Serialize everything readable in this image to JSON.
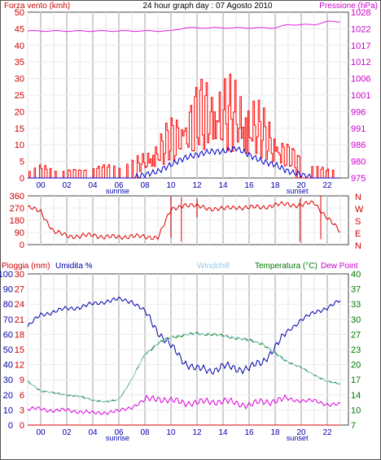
{
  "chart_data": [
    {
      "type": "line",
      "title": "24 hour graph day : 07 Agosto 2010",
      "ylabel": "Forza vento (kmh)",
      "y2label": "Pressione (hPa)",
      "ylim": [
        0,
        50
      ],
      "y_ticks": [
        "0",
        "5",
        "10",
        "15",
        "20",
        "25",
        "30",
        "35",
        "40",
        "45",
        "50"
      ],
      "y2lim": [
        975,
        1028
      ],
      "y2_ticks": [
        "975",
        "980",
        "986",
        "991",
        "996",
        "1001",
        "1006",
        "1012",
        "1017",
        "1022",
        "1028"
      ],
      "x_ticks": [
        "00",
        "02",
        "04",
        "06",
        "08",
        "10",
        "12",
        "14",
        "16",
        "18",
        "20",
        "22"
      ],
      "annotations": [
        "sunrise",
        "sunset"
      ],
      "x": [
        0,
        1,
        2,
        3,
        4,
        5,
        6,
        7,
        8,
        9,
        10,
        11,
        12,
        13,
        14,
        15,
        16,
        17,
        18,
        19,
        20,
        21,
        22,
        23,
        24
      ],
      "series": [
        {
          "name": "Pressione",
          "axis": "y2",
          "color": "#e020e0",
          "values": [
            1022,
            1022,
            1022,
            1022,
            1022,
            1022,
            1022,
            1022,
            1022,
            1022,
            1022,
            1022,
            1023,
            1023,
            1023,
            1023,
            1023,
            1023,
            1023,
            1023,
            1024,
            1024,
            1024,
            1025,
            1025
          ]
        },
        {
          "name": "Raffica",
          "axis": "y",
          "color": "#ff0000",
          "values": [
            2,
            3,
            2,
            2,
            2,
            3,
            3,
            3,
            4,
            6,
            10,
            14,
            18,
            22,
            25,
            23,
            22,
            20,
            16,
            12,
            8,
            5,
            3,
            2,
            2
          ]
        },
        {
          "name": "Vento medio",
          "axis": "y",
          "color": "#0000cc",
          "values": [
            0,
            0,
            0,
            0,
            0,
            0,
            0,
            0,
            0,
            1,
            2,
            4,
            6,
            7,
            8,
            8,
            9,
            7,
            5,
            4,
            2,
            1,
            0,
            0,
            0
          ]
        }
      ]
    },
    {
      "type": "scatter",
      "title": "",
      "ylim": [
        0,
        360
      ],
      "y_ticks": [
        "0",
        "90",
        "180",
        "270",
        "360"
      ],
      "y2_labels": [
        "N",
        "W",
        "S",
        "E",
        "N"
      ],
      "x": [
        0,
        1,
        2,
        3,
        4,
        5,
        6,
        7,
        8,
        9,
        10,
        11,
        12,
        13,
        14,
        15,
        16,
        17,
        18,
        19,
        20,
        21,
        22,
        23,
        24
      ],
      "series": [
        {
          "name": "Direzione",
          "color": "#dd0000",
          "values": [
            270,
            250,
            90,
            70,
            60,
            70,
            60,
            50,
            70,
            50,
            60,
            250,
            300,
            280,
            270,
            260,
            280,
            270,
            280,
            290,
            300,
            290,
            310,
            200,
            90
          ]
        }
      ]
    },
    {
      "type": "line",
      "title": "",
      "labels": {
        "pioggia": "Pioggia (mm)",
        "umidita": "Umidita %",
        "windchill": "Windchill",
        "temperatura": "Temperatura (°C)",
        "dewpoint": "Dew Point"
      },
      "y_rain_ticks": [
        "0",
        "3",
        "6",
        "9",
        "12",
        "15",
        "18",
        "21",
        "24",
        "27",
        "30"
      ],
      "ylim_rain": [
        0,
        30
      ],
      "y_hum_ticks": [
        "0",
        "10",
        "20",
        "30",
        "40",
        "50",
        "60",
        "70",
        "80",
        "90",
        "100"
      ],
      "ylim_hum": [
        0,
        100
      ],
      "y2lim": [
        7,
        40
      ],
      "y2_ticks": [
        "7",
        "10",
        "14",
        "17",
        "20",
        "23",
        "27",
        "30",
        "33",
        "37",
        "40"
      ],
      "x_ticks": [
        "00",
        "02",
        "04",
        "06",
        "08",
        "10",
        "12",
        "14",
        "16",
        "18",
        "20",
        "22"
      ],
      "annotations": [
        "sunrise",
        "sunset"
      ],
      "x": [
        0,
        1,
        2,
        3,
        4,
        5,
        6,
        7,
        8,
        9,
        10,
        11,
        12,
        13,
        14,
        15,
        16,
        17,
        18,
        19,
        20,
        21,
        22,
        23,
        24
      ],
      "series": [
        {
          "name": "Umidita",
          "axis": "hum",
          "color": "#0000aa",
          "values": [
            65,
            73,
            75,
            77,
            78,
            80,
            82,
            83,
            82,
            75,
            62,
            52,
            42,
            37,
            36,
            39,
            37,
            38,
            41,
            52,
            62,
            70,
            74,
            78,
            82
          ]
        },
        {
          "name": "Temperatura",
          "axis": "temp",
          "color": "#007700",
          "values": [
            16.5,
            14.5,
            14,
            13.6,
            13.2,
            12.5,
            12,
            12.6,
            17,
            22.5,
            24.8,
            26.2,
            26.6,
            27,
            26.8,
            26.5,
            26,
            25.5,
            24.8,
            22.6,
            20.8,
            19.5,
            18,
            16.5,
            16
          ]
        },
        {
          "name": "Windchill",
          "axis": "temp",
          "color": "#aad8f0",
          "values": [
            16.5,
            14.5,
            14,
            13.6,
            13.2,
            12.5,
            12,
            12.6,
            17,
            22.5,
            24.8,
            26.2,
            26.6,
            27,
            26.8,
            26.5,
            26,
            25.5,
            24.8,
            22.6,
            20.8,
            19.5,
            18,
            16.5,
            16
          ]
        },
        {
          "name": "Dew Point",
          "axis": "temp",
          "color": "#dd00dd",
          "values": [
            10.5,
            10.5,
            10.2,
            10.2,
            10,
            9.6,
            9.8,
            10,
            11,
            12.4,
            13,
            12.2,
            12,
            11.8,
            12.2,
            12.2,
            11.8,
            11.4,
            12,
            12.4,
            12.6,
            12.4,
            12.2,
            11.6,
            11.4
          ]
        },
        {
          "name": "Pioggia",
          "axis": "rain",
          "color": "#dd0000",
          "values": [
            0,
            0,
            0,
            0,
            0,
            0,
            0,
            0,
            0,
            0,
            0,
            0,
            0,
            0,
            0,
            0,
            0,
            0,
            0,
            0,
            0,
            0,
            0,
            0,
            0
          ]
        }
      ]
    }
  ]
}
